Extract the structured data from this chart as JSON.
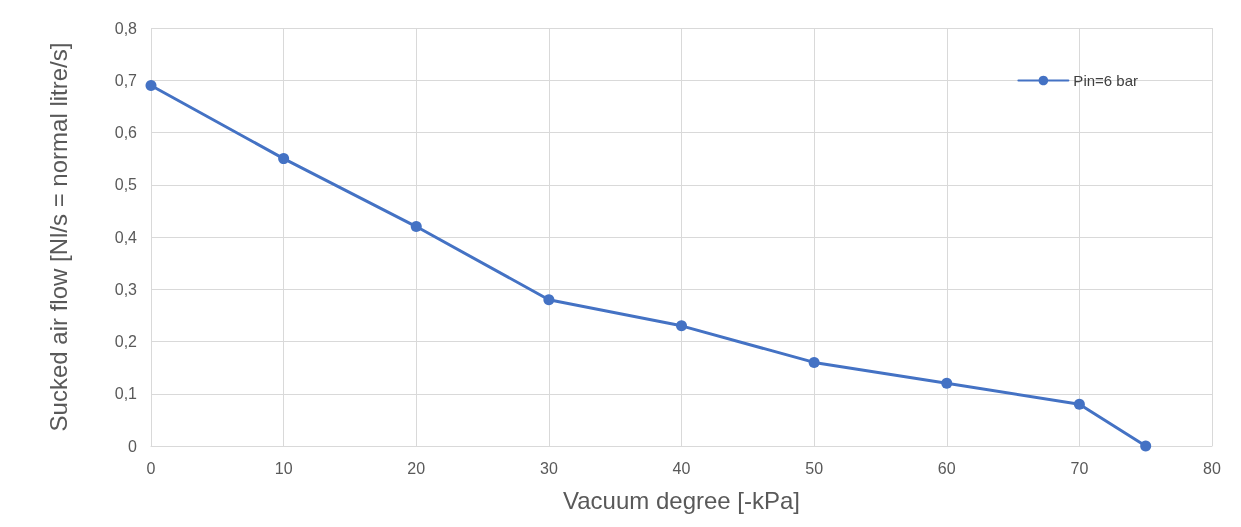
{
  "chart_data": {
    "type": "line",
    "xlabel": "Vacuum degree [-kPa]",
    "ylabel": "Sucked air flow [Nl/s = normal litre/s]",
    "x": [
      0,
      10,
      20,
      30,
      40,
      50,
      60,
      70,
      75
    ],
    "series": [
      {
        "name": "Pin=6 bar",
        "color": "#4472c4",
        "values": [
          0.69,
          0.55,
          0.42,
          0.28,
          0.23,
          0.16,
          0.12,
          0.08,
          0
        ]
      }
    ],
    "xlim": [
      0,
      80
    ],
    "xticks": [
      0,
      10,
      20,
      30,
      40,
      50,
      60,
      70,
      80
    ],
    "ylim": [
      0,
      0.8
    ],
    "yticks": [
      0,
      {
        "value": 0.1,
        "label": "0,1"
      },
      {
        "value": 0.2,
        "label": "0,2"
      },
      {
        "value": 0.3,
        "label": "0,3"
      },
      {
        "value": 0.4,
        "label": "0,4"
      },
      {
        "value": 0.5,
        "label": "0,5"
      },
      {
        "value": 0.6,
        "label": "0,6"
      },
      {
        "value": 0.7,
        "label": "0,7"
      },
      {
        "value": 0.8,
        "label": "0,8"
      }
    ],
    "grid": true,
    "legend": "top right",
    "marker": "circle",
    "line_style": "solid"
  }
}
